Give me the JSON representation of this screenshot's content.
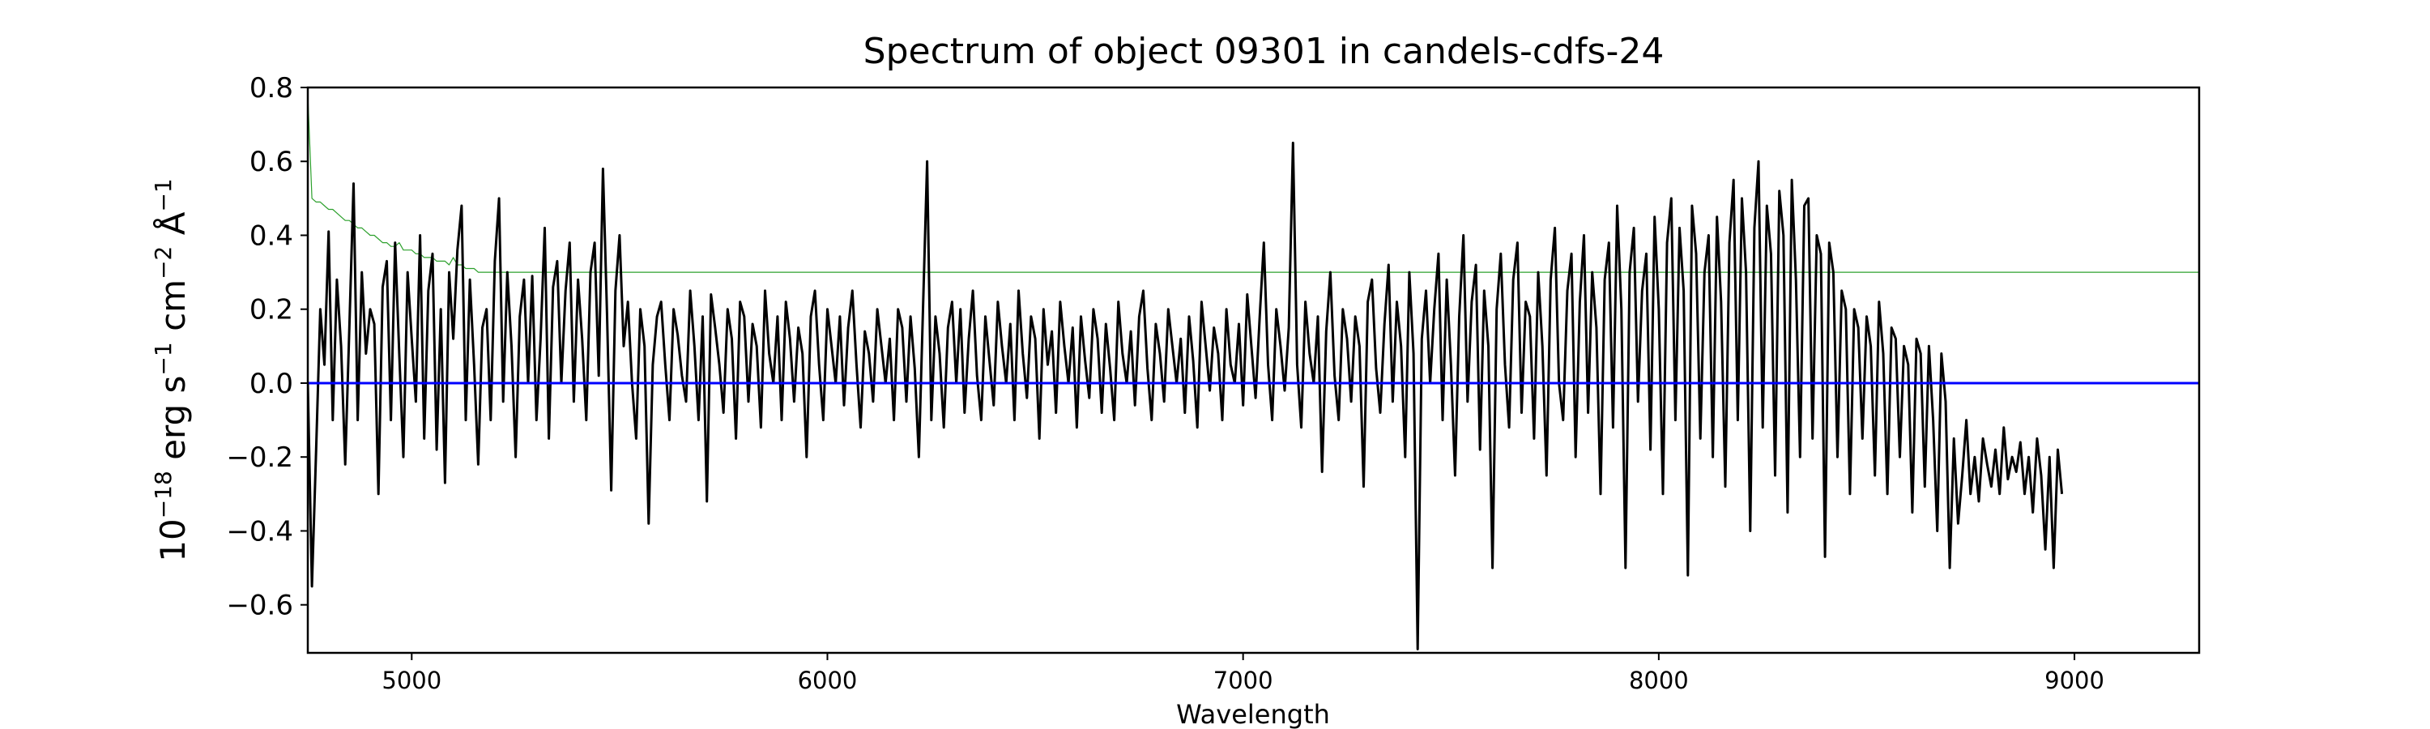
{
  "chart_data": {
    "type": "line",
    "title": "Spectrum of object 09301 in candels-cdfs-24",
    "xlabel": "Wavelength",
    "ylabel": {
      "base": "10",
      "exp": "−18",
      "unit1": " erg s",
      "exp1": "−1",
      "unit2": " cm",
      "exp2": "−2",
      "unit3": " Å",
      "exp3": "−1"
    },
    "xlim": [
      4750,
      9300
    ],
    "ylim": [
      -0.73,
      0.8
    ],
    "x_ticks": [
      5000,
      6000,
      7000,
      8000,
      9000
    ],
    "x_tick_labels": [
      "5000",
      "6000",
      "7000",
      "8000",
      "9000"
    ],
    "y_ticks": [
      -0.6,
      -0.4,
      -0.2,
      0.0,
      0.2,
      0.4,
      0.6,
      0.8
    ],
    "y_tick_labels": [
      "−0.6",
      "−0.4",
      "−0.2",
      "0.0",
      "0.2",
      "0.4",
      "0.6",
      "0.8"
    ],
    "grid": false,
    "series": [
      {
        "role": "noise",
        "color": "#2ca02c",
        "linewidth": 1.2,
        "x_start": 4750,
        "x_step": 10,
        "values": [
          0.78,
          0.5,
          0.49,
          0.49,
          0.48,
          0.47,
          0.47,
          0.46,
          0.45,
          0.44,
          0.44,
          0.43,
          0.42,
          0.42,
          0.41,
          0.4,
          0.4,
          0.39,
          0.38,
          0.38,
          0.37,
          0.37,
          0.38,
          0.36,
          0.36,
          0.36,
          0.35,
          0.35,
          0.34,
          0.34,
          0.34,
          0.33,
          0.33,
          0.33,
          0.32,
          0.34,
          0.32,
          0.32,
          0.31,
          0.31,
          0.31,
          0.3,
          0.3,
          0.3,
          0.3,
          0.3,
          0.3,
          0.3,
          0.3,
          0.3,
          0.3,
          0.3,
          0.3,
          0.3,
          0.3,
          0.3,
          0.3,
          0.3,
          0.3,
          0.3,
          0.3,
          0.3,
          0.3,
          0.3,
          0.3,
          0.3,
          0.3,
          0.3,
          0.3,
          0.3,
          0.3,
          0.3,
          0.3,
          0.3,
          0.3,
          0.3,
          0.3,
          0.3,
          0.3,
          0.3,
          0.3,
          0.3,
          0.3,
          0.3,
          0.3,
          0.3,
          0.3,
          0.3,
          0.3,
          0.3,
          0.3,
          0.3,
          0.3,
          0.3,
          0.3,
          0.3,
          0.3,
          0.3,
          0.3,
          0.3,
          0.3,
          0.3,
          0.3,
          0.3,
          0.3,
          0.3,
          0.3,
          0.3,
          0.3,
          0.3,
          0.3,
          0.3,
          0.3,
          0.3,
          0.3,
          0.3,
          0.3,
          0.3,
          0.3,
          0.3,
          0.3,
          0.3,
          0.3,
          0.3,
          0.3,
          0.3,
          0.3,
          0.3,
          0.3,
          0.3,
          0.3,
          0.3,
          0.3,
          0.3,
          0.3,
          0.3,
          0.3,
          0.3,
          0.3,
          0.3,
          0.3,
          0.3,
          0.3,
          0.3,
          0.3,
          0.3,
          0.3,
          0.3,
          0.3,
          0.3,
          0.3,
          0.3,
          0.3,
          0.3,
          0.3,
          0.3,
          0.3,
          0.3,
          0.3,
          0.3,
          0.3,
          0.3,
          0.3,
          0.3,
          0.3,
          0.3,
          0.3,
          0.3,
          0.3,
          0.3,
          0.3,
          0.3,
          0.3,
          0.3,
          0.3,
          0.3,
          0.3,
          0.3,
          0.3,
          0.3,
          0.3,
          0.3,
          0.3,
          0.3,
          0.3,
          0.3,
          0.3,
          0.3,
          0.3,
          0.3,
          0.3,
          0.3,
          0.3,
          0.3,
          0.3,
          0.3,
          0.3,
          0.3,
          0.3,
          0.3,
          0.3,
          0.3,
          0.3,
          0.3,
          0.3,
          0.3,
          0.3,
          0.3,
          0.3,
          0.3,
          0.3,
          0.3,
          0.3,
          0.3,
          0.3,
          0.3,
          0.3,
          0.3,
          0.3,
          0.3,
          0.3,
          0.3,
          0.3,
          0.3,
          0.3,
          0.3,
          0.3,
          0.3,
          0.3,
          0.3,
          0.3,
          0.3,
          0.3,
          0.3,
          0.3,
          0.3,
          0.3,
          0.3,
          0.3,
          0.3,
          0.3,
          0.3,
          0.3,
          0.3,
          0.3,
          0.3,
          0.3,
          0.3,
          0.3,
          0.3,
          0.3,
          0.3,
          0.3,
          0.3,
          0.3,
          0.3,
          0.3,
          0.3,
          0.3,
          0.3,
          0.3,
          0.3,
          0.3,
          0.3,
          0.3,
          0.3,
          0.3,
          0.3,
          0.3,
          0.3,
          0.3,
          0.3,
          0.3,
          0.3,
          0.3,
          0.3,
          0.3,
          0.3,
          0.3,
          0.3,
          0.3,
          0.3,
          0.3,
          0.3,
          0.3,
          0.3,
          0.3,
          0.3,
          0.3,
          0.3,
          0.3,
          0.3,
          0.3,
          0.3,
          0.3,
          0.3,
          0.3,
          0.3,
          0.3,
          0.3,
          0.3,
          0.3,
          0.3,
          0.3,
          0.3,
          0.3,
          0.3,
          0.3,
          0.3,
          0.3,
          0.3,
          0.3,
          0.3,
          0.3,
          0.3,
          0.3,
          0.3,
          0.3,
          0.3,
          0.3,
          0.3,
          0.3,
          0.3,
          0.3,
          0.3,
          0.3,
          0.3,
          0.3,
          0.3,
          0.3,
          0.3,
          0.3,
          0.3,
          0.3,
          0.3,
          0.3,
          0.3,
          0.3,
          0.3,
          0.3,
          0.3,
          0.3,
          0.3,
          0.3,
          0.3,
          0.3,
          0.3,
          0.3,
          0.3,
          0.3,
          0.3,
          0.3,
          0.3,
          0.3,
          0.3,
          0.3,
          0.3,
          0.3,
          0.3,
          0.3,
          0.3,
          0.3,
          0.3,
          0.3,
          0.3,
          0.3,
          0.3,
          0.3,
          0.3,
          0.3,
          0.3,
          0.3,
          0.3,
          0.3,
          0.3,
          0.3,
          0.3,
          0.3,
          0.3,
          0.3,
          0.3,
          0.3,
          0.3,
          0.3,
          0.3,
          0.3,
          0.3,
          0.3,
          0.3,
          0.3,
          0.3,
          0.3,
          0.3,
          0.3,
          0.3,
          0.3,
          0.3,
          0.3,
          0.3,
          0.3,
          0.3,
          0.3,
          0.3,
          0.3,
          0.3,
          0.3,
          0.3,
          0.3,
          0.3,
          0.3,
          0.3,
          0.3,
          0.3,
          0.3,
          0.3,
          0.3,
          0.3,
          0.3,
          0.3,
          0.3,
          0.3,
          0.3,
          0.3,
          0.3,
          0.3,
          0.3,
          0.3,
          0.3,
          0.3,
          0.3,
          0.3,
          0.3,
          0.3,
          0.3,
          0.3,
          0.3,
          0.3,
          0.3,
          0.3,
          0.3,
          0.3,
          0.3,
          0.3,
          0.3,
          0.3,
          0.3,
          0.3,
          0.3,
          0.3,
          0.3,
          0.3,
          0.3,
          0.3,
          0.3,
          0.3,
          0.3,
          0.3,
          0.3,
          0.3,
          0.3,
          0.3,
          0.3,
          0.3,
          0.3,
          0.3,
          0.3,
          0.3,
          0.3,
          0.3,
          0.3,
          0.3,
          0.3,
          0.3,
          0.3,
          0.3,
          0.3,
          0.3,
          0.3,
          0.3,
          0.3,
          0.3,
          0.3,
          0.3,
          0.3,
          0.3,
          0.3,
          0.3,
          0.3,
          0.3,
          0.3,
          0.3,
          0.3,
          0.3,
          0.3,
          0.3,
          0.3,
          0.3,
          0.3,
          0.3,
          0.3,
          0.3,
          0.3,
          0.3,
          0.3,
          0.3,
          0.3,
          0.3,
          0.3,
          0.3,
          0.3,
          0.3,
          0.3,
          0.3,
          0.3,
          0.3
        ]
      },
      {
        "role": "flux",
        "color": "#000000",
        "linewidth": 3,
        "x_start": 4750,
        "x_step": 10,
        "values": [
          0.0,
          -0.55,
          -0.18,
          0.2,
          0.05,
          0.41,
          -0.1,
          0.28,
          0.1,
          -0.22,
          0.15,
          0.54,
          -0.1,
          0.3,
          0.08,
          0.2,
          0.16,
          -0.3,
          0.26,
          0.33,
          -0.1,
          0.38,
          0.08,
          -0.2,
          0.3,
          0.12,
          -0.05,
          0.4,
          -0.15,
          0.25,
          0.35,
          -0.18,
          0.2,
          -0.27,
          0.3,
          0.12,
          0.36,
          0.48,
          -0.1,
          0.28,
          0.05,
          -0.22,
          0.15,
          0.2,
          -0.1,
          0.33,
          0.5,
          -0.05,
          0.3,
          0.1,
          -0.2,
          0.18,
          0.28,
          0.0,
          0.29,
          -0.1,
          0.12,
          0.42,
          -0.15,
          0.26,
          0.33,
          0.0,
          0.25,
          0.38,
          -0.05,
          0.28,
          0.12,
          -0.1,
          0.3,
          0.38,
          0.02,
          0.58,
          0.18,
          -0.29,
          0.25,
          0.4,
          0.1,
          0.22,
          0.0,
          -0.15,
          0.2,
          0.1,
          -0.38,
          0.05,
          0.18,
          0.22,
          0.05,
          -0.1,
          0.2,
          0.13,
          0.02,
          -0.05,
          0.25,
          0.1,
          -0.1,
          0.18,
          -0.32,
          0.24,
          0.15,
          0.05,
          -0.08,
          0.2,
          0.12,
          -0.15,
          0.22,
          0.18,
          -0.05,
          0.16,
          0.1,
          -0.12,
          0.25,
          0.08,
          0.0,
          0.18,
          -0.1,
          0.22,
          0.12,
          -0.05,
          0.15,
          0.08,
          -0.2,
          0.18,
          0.25,
          0.05,
          -0.1,
          0.2,
          0.1,
          0.0,
          0.18,
          -0.06,
          0.15,
          0.25,
          0.05,
          -0.12,
          0.14,
          0.08,
          -0.05,
          0.2,
          0.1,
          0.0,
          0.12,
          -0.1,
          0.2,
          0.15,
          -0.05,
          0.18,
          0.04,
          -0.2,
          0.2,
          0.6,
          -0.1,
          0.18,
          0.08,
          -0.12,
          0.15,
          0.22,
          0.0,
          0.2,
          -0.08,
          0.12,
          0.25,
          0.02,
          -0.1,
          0.18,
          0.06,
          -0.06,
          0.22,
          0.1,
          0.0,
          0.16,
          -0.1,
          0.25,
          0.08,
          -0.04,
          0.18,
          0.12,
          -0.15,
          0.2,
          0.05,
          0.14,
          -0.08,
          0.22,
          0.1,
          0.0,
          0.15,
          -0.12,
          0.18,
          0.06,
          -0.04,
          0.2,
          0.12,
          -0.08,
          0.16,
          0.04,
          -0.1,
          0.22,
          0.08,
          0.0,
          0.14,
          -0.06,
          0.18,
          0.25,
          0.04,
          -0.1,
          0.16,
          0.08,
          -0.05,
          0.2,
          0.1,
          0.0,
          0.12,
          -0.08,
          0.18,
          0.06,
          -0.12,
          0.22,
          0.1,
          -0.02,
          0.15,
          0.08,
          -0.1,
          0.2,
          0.05,
          0.0,
          0.16,
          -0.06,
          0.24,
          0.1,
          -0.04,
          0.18,
          0.38,
          0.05,
          -0.1,
          0.2,
          0.1,
          -0.02,
          0.15,
          0.65,
          0.05,
          -0.12,
          0.22,
          0.08,
          0.0,
          0.18,
          -0.24,
          0.14,
          0.3,
          0.02,
          -0.1,
          0.2,
          0.12,
          -0.05,
          0.18,
          0.1,
          -0.28,
          0.22,
          0.28,
          0.04,
          -0.08,
          0.16,
          0.32,
          -0.05,
          0.22,
          0.1,
          -0.2,
          0.3,
          0.08,
          -0.72,
          0.12,
          0.25,
          0.0,
          0.2,
          0.35,
          -0.1,
          0.28,
          0.05,
          -0.25,
          0.18,
          0.4,
          -0.05,
          0.22,
          0.32,
          -0.18,
          0.25,
          0.1,
          -0.5,
          0.2,
          0.35,
          0.05,
          -0.12,
          0.28,
          0.38,
          -0.08,
          0.22,
          0.18,
          -0.15,
          0.3,
          0.1,
          -0.25,
          0.28,
          0.42,
          0.0,
          -0.1,
          0.25,
          0.35,
          -0.2,
          0.22,
          0.4,
          -0.08,
          0.3,
          0.15,
          -0.3,
          0.28,
          0.38,
          -0.12,
          0.48,
          0.2,
          -0.5,
          0.3,
          0.42,
          -0.05,
          0.25,
          0.35,
          -0.18,
          0.45,
          0.2,
          -0.3,
          0.38,
          0.5,
          -0.1,
          0.42,
          0.25,
          -0.52,
          0.48,
          0.35,
          -0.15,
          0.3,
          0.4,
          -0.2,
          0.45,
          0.22,
          -0.28,
          0.38,
          0.55,
          -0.1,
          0.5,
          0.3,
          -0.4,
          0.42,
          0.6,
          -0.12,
          0.48,
          0.35,
          -0.25,
          0.52,
          0.4,
          -0.35,
          0.55,
          0.28,
          -0.2,
          0.48,
          0.5,
          -0.15,
          0.4,
          0.35,
          -0.47,
          0.38,
          0.3,
          -0.2,
          0.25,
          0.2,
          -0.3,
          0.2,
          0.15,
          -0.15,
          0.18,
          0.1,
          -0.25,
          0.22,
          0.08,
          -0.3,
          0.15,
          0.12,
          -0.2,
          0.1,
          0.05,
          -0.35,
          0.12,
          0.08,
          -0.28,
          0.1,
          -0.1,
          -0.4,
          0.08,
          -0.05,
          -0.5,
          -0.15,
          -0.38,
          -0.25,
          -0.1,
          -0.3,
          -0.2,
          -0.32,
          -0.15,
          -0.22,
          -0.28,
          -0.18,
          -0.3,
          -0.12,
          -0.26,
          -0.2,
          -0.24,
          -0.16,
          -0.3,
          -0.2,
          -0.35,
          -0.15,
          -0.25,
          -0.45,
          -0.2,
          -0.5,
          -0.18,
          -0.3
        ]
      },
      {
        "role": "continuum",
        "color": "#0000ff",
        "linewidth": 3,
        "x": [
          4750,
          9300
        ],
        "values": [
          0.0,
          0.0
        ]
      }
    ]
  }
}
